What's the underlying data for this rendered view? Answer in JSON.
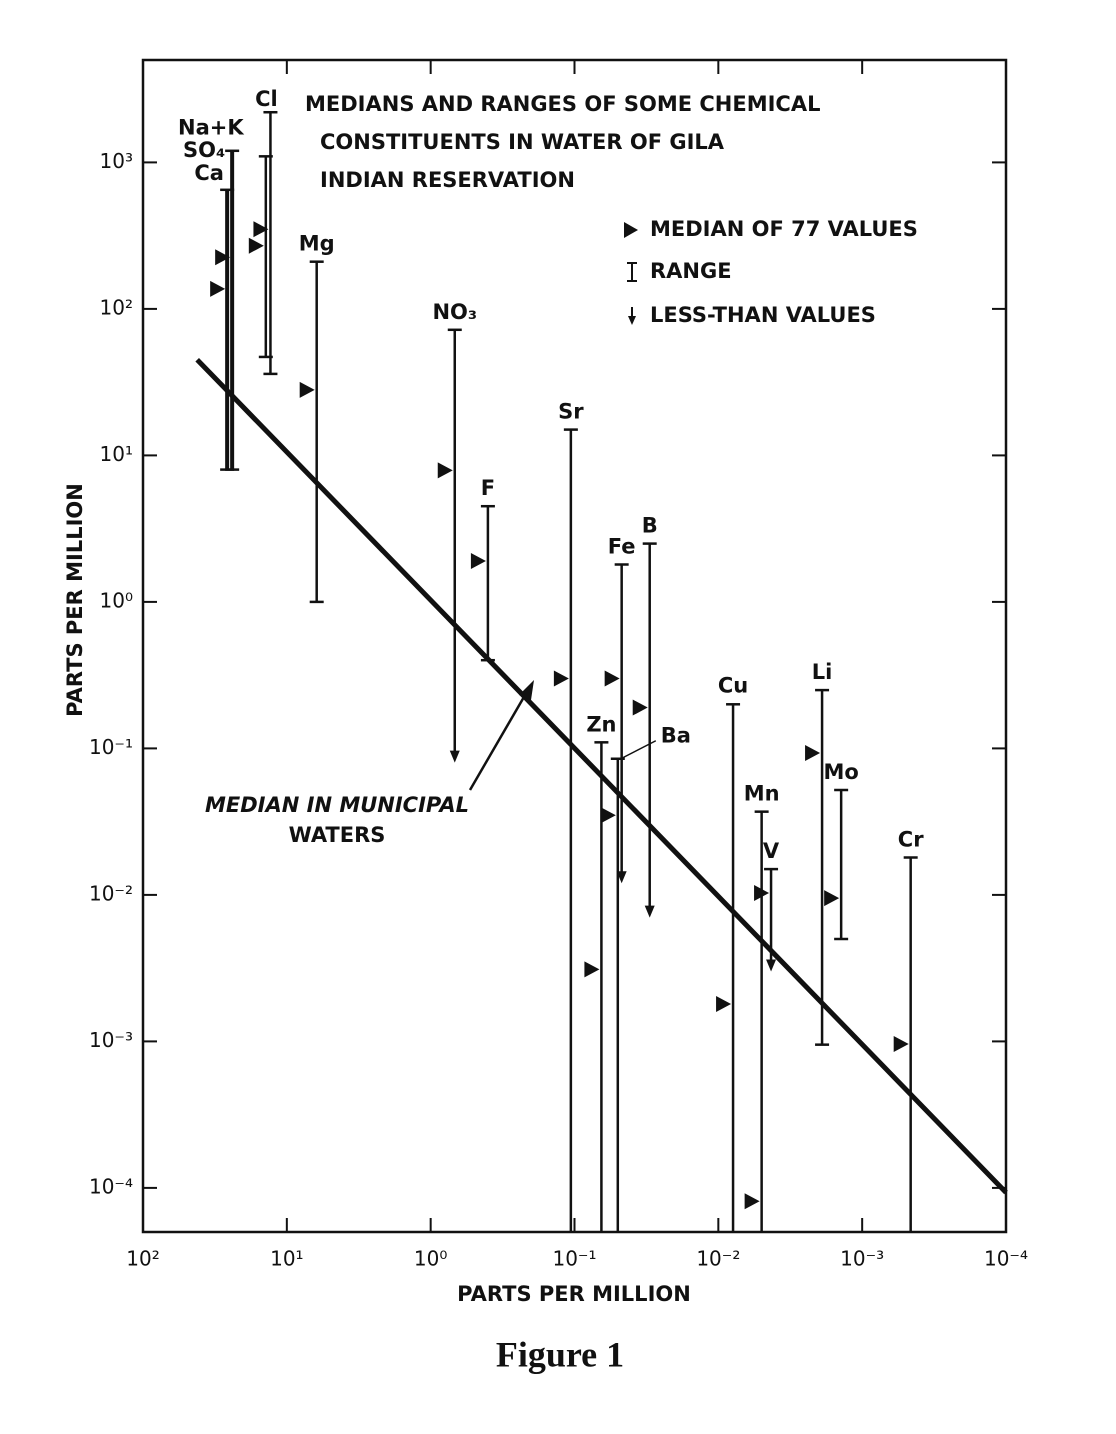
{
  "chart_data": {
    "type": "range",
    "title": [
      "MEDIANS AND RANGES OF SOME CHEMICAL",
      "CONSTITUENTS IN WATER OF GILA",
      "INDIAN RESERVATION"
    ],
    "xlabel": "PARTS PER MILLION",
    "ylabel": "PARTS PER MILLION",
    "caption": "Figure 1",
    "log_x": true,
    "log_y": true,
    "xlim": [
      100,
      0.0001
    ],
    "ylim": [
      5e-05,
      5000
    ],
    "xticks": [
      {
        "value": 100,
        "label": "10²"
      },
      {
        "value": 10,
        "label": "10¹"
      },
      {
        "value": 1,
        "label": "10⁰"
      },
      {
        "value": 0.1,
        "label": "10⁻¹"
      },
      {
        "value": 0.01,
        "label": "10⁻²"
      },
      {
        "value": 0.001,
        "label": "10⁻³"
      },
      {
        "value": 0.0001,
        "label": "10⁻⁴"
      }
    ],
    "yticks": [
      {
        "value": 0.0001,
        "label": "10⁻⁴"
      },
      {
        "value": 0.001,
        "label": "10⁻³"
      },
      {
        "value": 0.01,
        "label": "10⁻²"
      },
      {
        "value": 0.1,
        "label": "10⁻¹"
      },
      {
        "value": 1,
        "label": "10⁰"
      },
      {
        "value": 10,
        "label": "10¹"
      },
      {
        "value": 100,
        "label": "10²"
      },
      {
        "value": 1000,
        "label": "10³"
      }
    ],
    "color": "#111111",
    "categories": [
      "Ca",
      "SO₄",
      "Na+K",
      "Cl",
      "Mg",
      "NO₃",
      "F",
      "Sr",
      "Zn",
      "Ba",
      "Fe",
      "B",
      "Cu",
      "Mn",
      "V",
      "Li",
      "Mo",
      "Cr"
    ],
    "x": [
      26,
      24,
      14,
      13,
      6.2,
      0.68,
      0.4,
      0.106,
      0.065,
      0.05,
      0.047,
      0.03,
      0.0079,
      0.005,
      0.0043,
      0.0019,
      0.0014,
      0.00046
    ],
    "series": [
      {
        "name": "MEDIAN OF 77 VALUES",
        "values": [
          137,
          225,
          270,
          350,
          28,
          7.9,
          1.9,
          0.3,
          0.0031,
          0.035,
          0.3,
          0.19,
          0.0018,
          8.1e-05,
          0.0103,
          0.093,
          0.0095,
          0.00096
        ]
      },
      {
        "name": "RANGE",
        "low": [
          8,
          8,
          47,
          36,
          1,
          0.08,
          0.4,
          5e-05,
          5e-05,
          5e-05,
          0.012,
          0.007,
          5e-05,
          5e-05,
          0.003,
          0.00095,
          0.005,
          5e-05
        ],
        "high": [
          650,
          1200,
          1100,
          2200,
          210,
          72,
          4.5,
          15,
          0.11,
          0.085,
          1.8,
          2.5,
          0.2,
          0.037,
          0.015,
          0.25,
          0.052,
          0.018
        ]
      },
      {
        "name": "LESS-THAN VALUES",
        "values": [
          false,
          false,
          false,
          false,
          false,
          true,
          false,
          false,
          false,
          false,
          true,
          true,
          false,
          false,
          true,
          false,
          false,
          false
        ]
      }
    ],
    "reference_line": {
      "label": [
        "MEDIAN IN MUNICIPAL",
        "WATERS"
      ],
      "x": [
        42,
        0.0001
      ],
      "values": [
        45,
        9.3e-05
      ]
    }
  }
}
